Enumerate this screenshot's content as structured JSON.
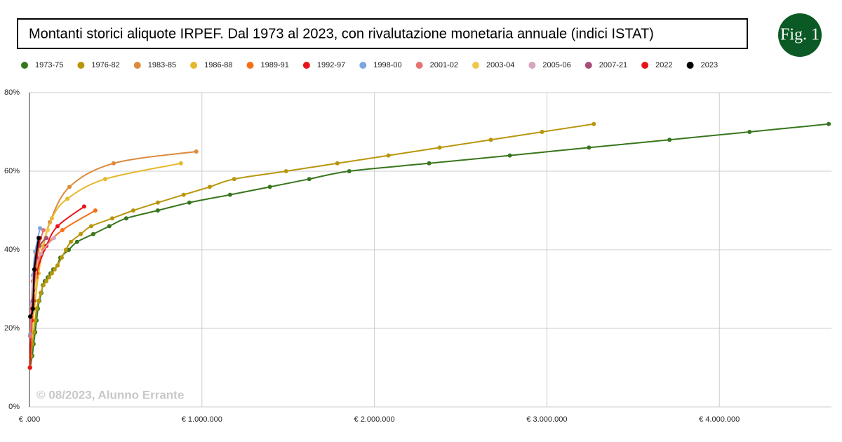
{
  "chart_data": {
    "type": "line",
    "title": "Montanti storici aliquote IRPEF. Dal 1973 al 2023, con rivalutazione monetaria annuale (indici ISTAT)",
    "badge": "Fig. 1",
    "watermark": "© 08/2023, Alunno Errante",
    "xlim": [
      0,
      4650000
    ],
    "ylim": [
      0,
      80
    ],
    "xticks": [
      {
        "value": 0,
        "label": "€ .000"
      },
      {
        "value": 1000000,
        "label": "€ 1.000.000"
      },
      {
        "value": 2000000,
        "label": "€ 2.000.000"
      },
      {
        "value": 3000000,
        "label": "€ 3.000.000"
      },
      {
        "value": 4000000,
        "label": "€ 4.000.000"
      }
    ],
    "yticks": [
      {
        "value": 0,
        "label": "0%"
      },
      {
        "value": 20,
        "label": "20%"
      },
      {
        "value": 40,
        "label": "40%"
      },
      {
        "value": 60,
        "label": "60%"
      },
      {
        "value": 80,
        "label": "80%"
      }
    ],
    "grid": true,
    "series": [
      {
        "name": "1973-75",
        "color": "#38761d",
        "x": [
          4000,
          16000,
          24000,
          33000,
          41000,
          49000,
          57000,
          69000,
          77000,
          89000,
          106000,
          122000,
          138000,
          163000,
          179000,
          228000,
          276000,
          370000,
          463000,
          561000,
          744000,
          927000,
          1163000,
          1394000,
          1622000,
          1854000,
          2317000,
          2785000,
          3244000,
          3711000,
          4175000,
          4634000
        ],
        "values": [
          10,
          13,
          16,
          19,
          22,
          25,
          27,
          29,
          31,
          32,
          33,
          34,
          35,
          36,
          38,
          40,
          42,
          44,
          46,
          48,
          50,
          52,
          54,
          56,
          58,
          60,
          62,
          64,
          66,
          68,
          70,
          72
        ]
      },
      {
        "name": "1976-82",
        "color": "#b8960c",
        "x": [
          2000,
          8000,
          16000,
          24000,
          33000,
          41000,
          53000,
          65000,
          81000,
          98000,
          114000,
          130000,
          146000,
          163000,
          187000,
          211000,
          240000,
          297000,
          358000,
          480000,
          602000,
          744000,
          894000,
          1045000,
          1187000,
          1488000,
          1785000,
          2081000,
          2378000,
          2675000,
          2972000,
          3272000
        ],
        "values": [
          10,
          13,
          16,
          19,
          22,
          25,
          27,
          29,
          31,
          32,
          33,
          34,
          35,
          36,
          38,
          40,
          42,
          44,
          46,
          48,
          50,
          52,
          54,
          56,
          58,
          60,
          62,
          64,
          66,
          68,
          70,
          72
        ]
      },
      {
        "name": "1983-85",
        "color": "#dd8a3c",
        "x": [
          8000,
          24000,
          41000,
          57000,
          81000,
          118000,
          232000,
          488000,
          967000
        ],
        "values": [
          18,
          27,
          35,
          37,
          41,
          47,
          56,
          62,
          65
        ]
      },
      {
        "name": "1986-88",
        "color": "#e6b82c",
        "x": [
          12000,
          33000,
          53000,
          81000,
          130000,
          220000,
          439000,
          878000
        ],
        "values": [
          18,
          27,
          34,
          41,
          48,
          53,
          58,
          62
        ]
      },
      {
        "name": "1989-91",
        "color": "#f57015",
        "x": [
          4000,
          12000,
          20000,
          41000,
          81000,
          191000,
          382000
        ],
        "values": [
          10,
          22,
          26,
          33,
          40,
          45,
          50
        ]
      },
      {
        "name": "1992-97",
        "color": "#e8141c",
        "x": [
          2000,
          12000,
          24000,
          41000,
          98000,
          163000,
          317000
        ],
        "values": [
          10,
          22,
          27,
          34,
          41,
          46,
          51
        ]
      },
      {
        "name": "1998-00",
        "color": "#7aa7e0",
        "x": [
          4000,
          12000,
          20000,
          33000,
          61000
        ],
        "values": [
          18.5,
          26.5,
          33.5,
          39.5,
          45.5
        ]
      },
      {
        "name": "2001-02",
        "color": "#e57373",
        "x": [
          4000,
          12000,
          20000,
          41000,
          81000
        ],
        "values": [
          18,
          24,
          32,
          39,
          45
        ]
      },
      {
        "name": "2003-04",
        "color": "#f0c94a",
        "x": [
          8000,
          20000,
          33000,
          53000,
          106000
        ],
        "values": [
          23,
          29,
          31,
          39,
          45
        ]
      },
      {
        "name": "2005-06",
        "color": "#d5a6bd",
        "x": [
          4000,
          24000,
          65000,
          142000
        ],
        "values": [
          23,
          33,
          39,
          43
        ]
      },
      {
        "name": "2007-21",
        "color": "#a64d79",
        "x": [
          8000,
          20000,
          41000,
          57000,
          98000
        ],
        "values": [
          23,
          27,
          38,
          41,
          43
        ]
      },
      {
        "name": "2022",
        "color": "#e8141c",
        "x": [
          8000,
          16000,
          33000,
          61000
        ],
        "values": [
          23,
          25,
          35,
          43
        ]
      },
      {
        "name": "2023",
        "color": "#000000",
        "x": [
          4000,
          20000,
          28000,
          53000
        ],
        "values": [
          23,
          25,
          35,
          43
        ]
      }
    ]
  }
}
